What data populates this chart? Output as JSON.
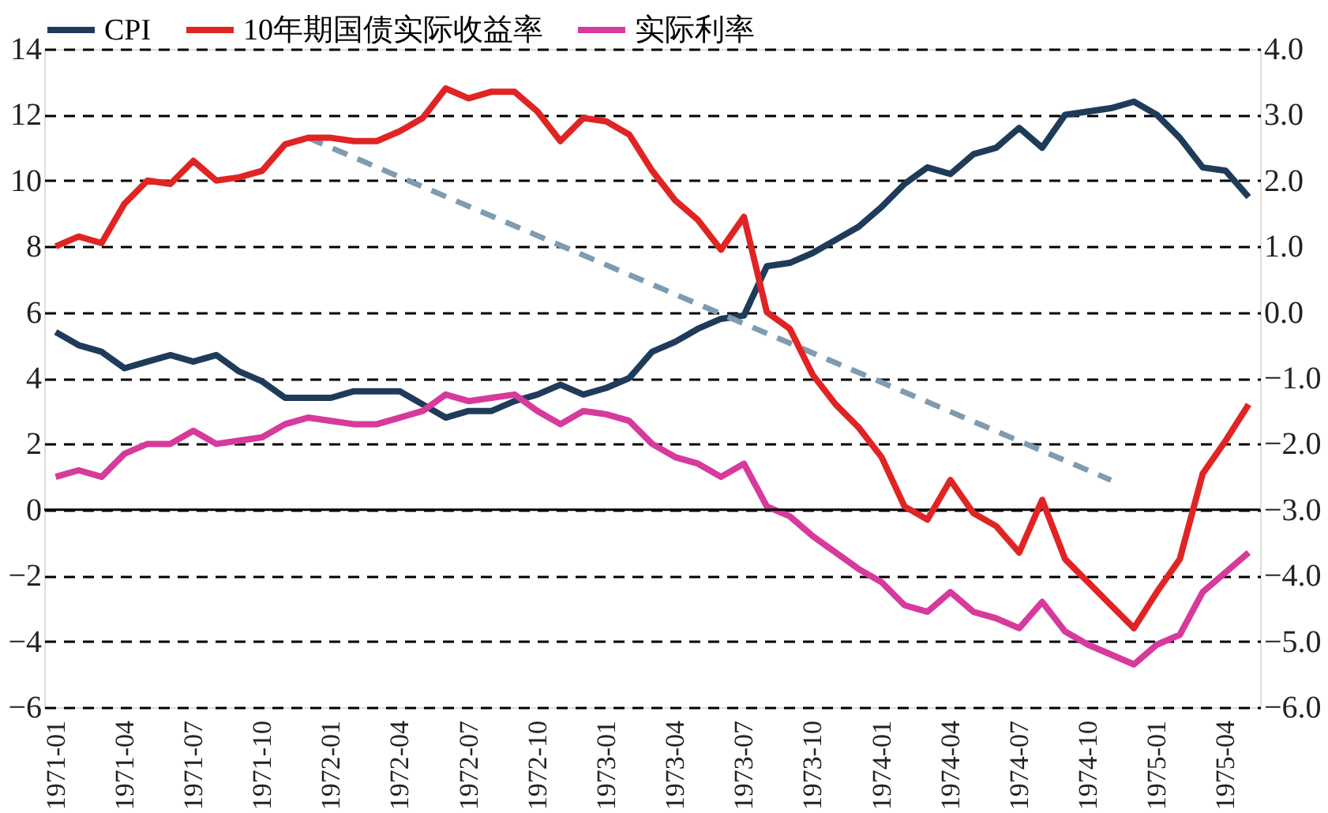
{
  "chart_data": {
    "type": "line",
    "categories": [
      "1971-01",
      null,
      null,
      "1971-04",
      null,
      null,
      "1971-07",
      null,
      null,
      "1971-10",
      null,
      null,
      "1972-01",
      null,
      null,
      "1972-04",
      null,
      null,
      "1972-07",
      null,
      null,
      "1972-10",
      null,
      null,
      "1973-01",
      null,
      null,
      "1973-04",
      null,
      null,
      "1973-07",
      null,
      null,
      "1973-10",
      null,
      null,
      "1974-01",
      null,
      null,
      "1974-04",
      null,
      null,
      "1974-07",
      null,
      null,
      "1974-10",
      null,
      null,
      "1975-01",
      null,
      null,
      "1975-04",
      null
    ],
    "series": [
      {
        "name": "CPI",
        "axis": "y",
        "color": "#1f3b5a",
        "values": [
          5.4,
          5.0,
          4.8,
          4.3,
          4.5,
          4.7,
          4.5,
          4.7,
          4.2,
          3.9,
          3.4,
          3.4,
          3.4,
          3.6,
          3.6,
          3.6,
          3.2,
          2.8,
          3.0,
          3.0,
          3.3,
          3.5,
          3.8,
          3.5,
          3.7,
          4.0,
          4.8,
          5.1,
          5.5,
          5.8,
          5.9,
          7.4,
          7.5,
          7.8,
          8.2,
          8.6,
          9.2,
          9.9,
          10.4,
          10.2,
          10.8,
          11.0,
          11.6,
          11.0,
          12.0,
          12.1,
          12.2,
          12.4,
          12.0,
          11.3,
          10.4,
          10.3,
          9.5
        ]
      },
      {
        "name": "10年期国债实际收益率",
        "axis": "y2",
        "color": "#e02424",
        "values": [
          1.0,
          1.15,
          1.05,
          1.65,
          2.0,
          1.95,
          2.3,
          2.0,
          2.05,
          2.15,
          2.55,
          2.65,
          2.65,
          2.6,
          2.6,
          2.75,
          2.95,
          3.4,
          3.25,
          3.35,
          3.35,
          3.05,
          2.6,
          2.95,
          2.9,
          2.7,
          2.15,
          1.7,
          1.4,
          0.95,
          1.45,
          0.0,
          -0.25,
          -0.95,
          -1.4,
          -1.75,
          -2.2,
          -2.95,
          -3.15,
          -2.55,
          -3.05,
          -3.25,
          -3.65,
          -2.85,
          -3.75,
          -4.1,
          -4.45,
          -4.8,
          -4.25,
          -3.75,
          -2.45,
          -1.95,
          -1.4
        ]
      },
      {
        "name": "实际利率",
        "axis": "y",
        "color": "#d63a9c",
        "values": [
          1.0,
          1.2,
          1.0,
          1.7,
          2.0,
          2.0,
          2.4,
          2.0,
          2.1,
          2.2,
          2.6,
          2.8,
          2.7,
          2.6,
          2.6,
          2.8,
          3.0,
          3.5,
          3.3,
          3.4,
          3.5,
          3.0,
          2.6,
          3.0,
          2.9,
          2.7,
          2.0,
          1.6,
          1.4,
          1.0,
          1.4,
          0.1,
          -0.2,
          -0.8,
          -1.3,
          -1.8,
          -2.2,
          -2.9,
          -3.1,
          -2.5,
          -3.1,
          -3.3,
          -3.6,
          -2.8,
          -3.7,
          -4.1,
          -4.4,
          -4.7,
          -4.1,
          -3.8,
          -2.5,
          -1.9,
          -1.3
        ]
      },
      {
        "axis": "y",
        "color": "#7f9bb0",
        "line_style": "dashed",
        "values": [
          null,
          null,
          null,
          null,
          null,
          null,
          null,
          null,
          null,
          null,
          null,
          11.3,
          null,
          null,
          null,
          null,
          null,
          null,
          null,
          null,
          null,
          null,
          null,
          null,
          null,
          null,
          null,
          null,
          null,
          null,
          null,
          null,
          null,
          null,
          null,
          null,
          null,
          null,
          null,
          null,
          null,
          null,
          null,
          null,
          null,
          null,
          0.9,
          null,
          null,
          null,
          null,
          null,
          null
        ]
      }
    ],
    "ylim": [
      -6,
      14
    ],
    "yticks": [
      {
        "value": -6,
        "label": "−6"
      },
      {
        "value": -4,
        "label": "−4"
      },
      {
        "value": -2,
        "label": "−2"
      },
      0,
      2,
      4,
      6,
      8,
      10,
      12,
      14
    ],
    "y2lim": [
      -6,
      4
    ],
    "y2ticks": [
      {
        "value": -6,
        "label": "−6.0"
      },
      {
        "value": -5,
        "label": "−5.0"
      },
      {
        "value": -4,
        "label": "−4.0"
      },
      {
        "value": -3,
        "label": "−3.0"
      },
      {
        "value": -2,
        "label": "−2.0"
      },
      {
        "value": -1,
        "label": "−1.0"
      },
      {
        "value": 0,
        "label": "0.0"
      },
      {
        "value": 1,
        "label": "1.0"
      },
      {
        "value": 2,
        "label": "2.0"
      },
      {
        "value": 3,
        "label": "3.0"
      },
      {
        "value": 4,
        "label": "4.0"
      }
    ],
    "grid": "y",
    "legend": "top",
    "line_style": "solid",
    "marker": "none"
  }
}
